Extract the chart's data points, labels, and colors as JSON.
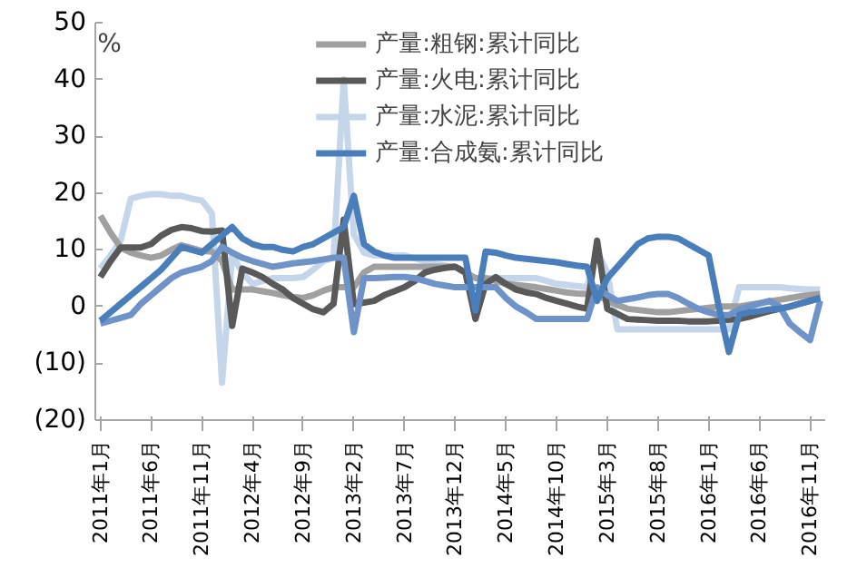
{
  "chart_data": {
    "type": "line",
    "ylabel": "%",
    "categories": [
      "2011年1月",
      null,
      null,
      null,
      null,
      "2011年6月",
      null,
      null,
      null,
      null,
      "2011年11月",
      null,
      null,
      null,
      null,
      "2012年4月",
      null,
      null,
      null,
      null,
      "2012年9月",
      null,
      null,
      null,
      null,
      "2013年2月",
      null,
      null,
      null,
      null,
      "2013年7月",
      null,
      null,
      null,
      null,
      "2013年12月",
      null,
      null,
      null,
      null,
      "2014年5月",
      null,
      null,
      null,
      null,
      "2014年10月",
      null,
      null,
      null,
      null,
      "2015年3月",
      null,
      null,
      null,
      null,
      "2015年8月",
      null,
      null,
      null,
      null,
      "2016年1月",
      null,
      null,
      null,
      null,
      "2016年6月",
      null,
      null,
      null,
      null,
      "2016年11月",
      null
    ],
    "ylim": [
      -20,
      50
    ],
    "yticks": [
      {
        "value": -20,
        "label": "(20)"
      },
      {
        "value": -10,
        "label": "(10)"
      },
      0,
      10,
      20,
      30,
      40,
      50
    ],
    "grid": false,
    "legend": "top",
    "marker": "none",
    "line_style": "solid",
    "series": [
      {
        "name": "产量:水泥:累计同比",
        "color": "#c6d6ea",
        "values": [
          6.7,
          9,
          11.6,
          19,
          19.5,
          19.8,
          19.8,
          19.5,
          19.5,
          19,
          18.7,
          16.4,
          -13.4,
          9,
          6,
          4,
          4.5,
          5,
          5,
          5,
          5.2,
          6.5,
          8,
          8.6,
          40,
          12.7,
          9.5,
          9,
          9,
          9,
          9,
          8.5,
          8,
          7.5,
          7.2,
          7,
          6,
          5,
          5,
          5,
          5,
          5,
          5,
          5,
          4.5,
          4,
          3.8,
          3.6,
          3.4,
          9.7,
          6,
          -4,
          -4,
          -4,
          -4,
          -4,
          -4,
          -4,
          -4,
          -4,
          -4,
          -4,
          -4,
          3.4,
          3.4,
          3.4,
          3.4,
          3.4,
          3.2,
          3.1,
          3,
          3
        ]
      },
      {
        "name": "产量:粗钢:累计同比",
        "color": "#a0a0a0",
        "values": [
          16,
          13,
          10.4,
          9.5,
          9,
          8.6,
          9,
          10,
          10.8,
          10.3,
          9.8,
          9.7,
          8,
          3,
          3,
          3,
          2.7,
          2.4,
          2,
          1.7,
          1.5,
          2,
          2.8,
          3.4,
          3.4,
          3.4,
          6,
          7,
          7,
          7,
          7,
          7,
          7,
          7,
          7,
          7,
          6,
          5,
          5,
          4.5,
          4,
          3.8,
          3.6,
          3.4,
          3.1,
          2.8,
          2.5,
          2.3,
          2.2,
          2.2,
          1,
          0.3,
          -0.4,
          -0.6,
          -0.8,
          -1,
          -1,
          -0.8,
          -0.6,
          -0.4,
          -0.2,
          0,
          0,
          0,
          0.3,
          0.6,
          0.9,
          1.2,
          1.5,
          1.8,
          2,
          2.2
        ]
      },
      {
        "name": "产量:火电:累计同比",
        "color": "#595959",
        "values": [
          5.2,
          8,
          10.4,
          10.4,
          10.4,
          11,
          12.5,
          13.5,
          14,
          13.8,
          13.3,
          13.2,
          13.4,
          -3.4,
          6.7,
          6,
          5.2,
          4,
          3,
          1.5,
          0.5,
          -0.5,
          -1,
          0.5,
          15.3,
          0.4,
          0.7,
          1,
          2,
          2.7,
          3.4,
          4.5,
          6,
          6.5,
          6.8,
          7,
          6,
          -2.2,
          4,
          5.2,
          4,
          3,
          2.5,
          2.2,
          1.5,
          1,
          0.5,
          0,
          -0.4,
          11.6,
          -0.4,
          -1.3,
          -2.2,
          -2.3,
          -2.4,
          -2.5,
          -2.5,
          -2.5,
          -2.6,
          -2.6,
          -2.6,
          -2.5,
          -2.3,
          -2.2,
          -1.8,
          -1.3,
          -0.8,
          -0.4,
          0,
          0.5,
          1,
          1.5
        ]
      },
      {
        "color": "#6f93c8",
        "values": [
          -3,
          -2.5,
          -2,
          -1.5,
          0.5,
          2,
          3.5,
          5,
          6,
          6.5,
          7,
          8,
          10.5,
          9.5,
          8.6,
          8,
          7.5,
          7,
          7.3,
          7.6,
          7.8,
          8,
          8.3,
          8.6,
          8.6,
          -4.5,
          5,
          5,
          5.1,
          5.2,
          5.2,
          5,
          4.5,
          4,
          3.7,
          3.4,
          3.4,
          3.4,
          3.4,
          3.4,
          1.5,
          0,
          -1,
          -2.2,
          -2.2,
          -2.2,
          -2.2,
          -2.2,
          -2.2,
          3.4,
          2,
          1,
          1.3,
          1.6,
          2,
          2.2,
          2.2,
          1.5,
          0.5,
          -0.4,
          -1,
          -1.5,
          -1.5,
          -0.5,
          0,
          0.5,
          1,
          0,
          -3,
          -4.5,
          -5.9,
          1
        ]
      },
      {
        "name": "产量:合成氨:累计同比",
        "color": "#4a7ebb",
        "values": [
          -2.5,
          -1,
          0.5,
          2,
          3.5,
          5,
          6.5,
          8.5,
          10.5,
          10,
          9.5,
          11,
          12.5,
          14,
          12,
          11,
          10.5,
          10.5,
          10,
          9.7,
          10.5,
          11,
          12,
          13,
          14,
          19.5,
          11,
          9.7,
          9,
          8.6,
          8.6,
          8.6,
          8.6,
          8.6,
          8.6,
          8.6,
          8.6,
          -0.7,
          9.7,
          9.5,
          9,
          8.6,
          8.4,
          8.2,
          8,
          7.8,
          7.5,
          7.2,
          7,
          1,
          5,
          7,
          9,
          11,
          12,
          12.3,
          12.3,
          12,
          11,
          10,
          9,
          0,
          -8,
          -1.5,
          -1,
          -0.8,
          -0.5,
          -0.4,
          0,
          0.5,
          1,
          1.5
        ]
      }
    ]
  }
}
